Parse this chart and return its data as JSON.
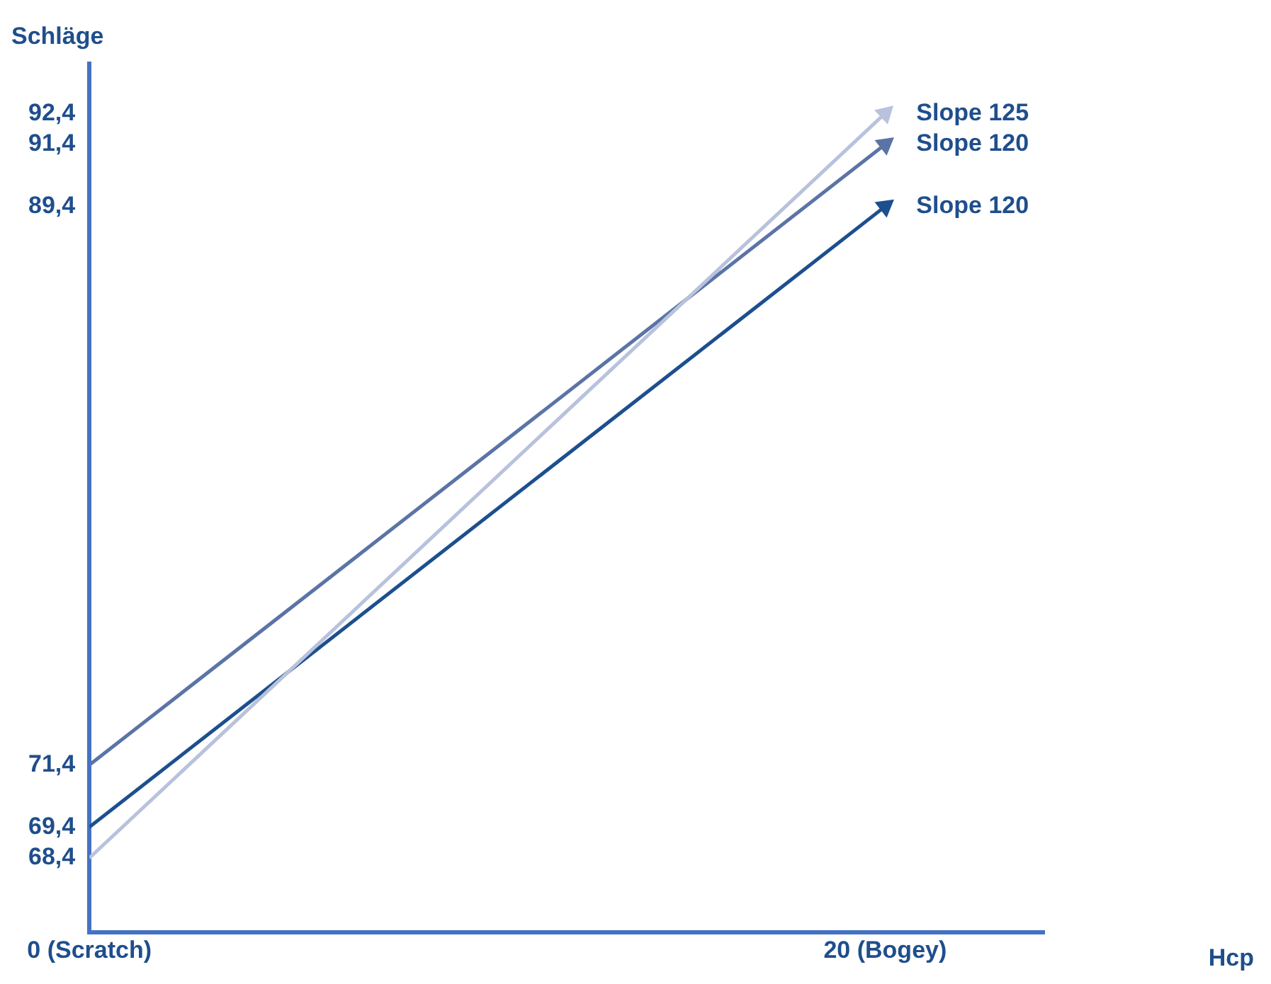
{
  "chart_data": {
    "type": "line",
    "ylabel": "Schläge",
    "annotations": [
      "Hcp"
    ],
    "xlim": [
      0,
      24
    ],
    "xticks": [
      {
        "value": 0,
        "label": "0 (Scratch)"
      },
      {
        "value": 20,
        "label": "20 (Bogey)"
      }
    ],
    "ylim": [
      66,
      94
    ],
    "yticks": [
      {
        "value": 68.4,
        "label": "68,4"
      },
      {
        "value": 69.4,
        "label": "69,4"
      },
      {
        "value": 71.4,
        "label": "71,4"
      },
      {
        "value": 89.4,
        "label": "89,4"
      },
      {
        "value": 91.4,
        "label": "91,4"
      },
      {
        "value": 92.4,
        "label": "92,4"
      }
    ],
    "x": [
      0,
      20
    ],
    "series": [
      {
        "name": "Slope 125",
        "color": "#b8c2dc",
        "values": [
          68.4,
          92.4
        ]
      },
      {
        "name": "Slope 120",
        "color": "#5b74a6",
        "values": [
          71.4,
          91.4
        ]
      },
      {
        "name": "Slope 120",
        "color": "#1c4f8e",
        "values": [
          69.4,
          89.4
        ]
      }
    ],
    "grid": false,
    "legend": "right",
    "line_style": "solid"
  }
}
